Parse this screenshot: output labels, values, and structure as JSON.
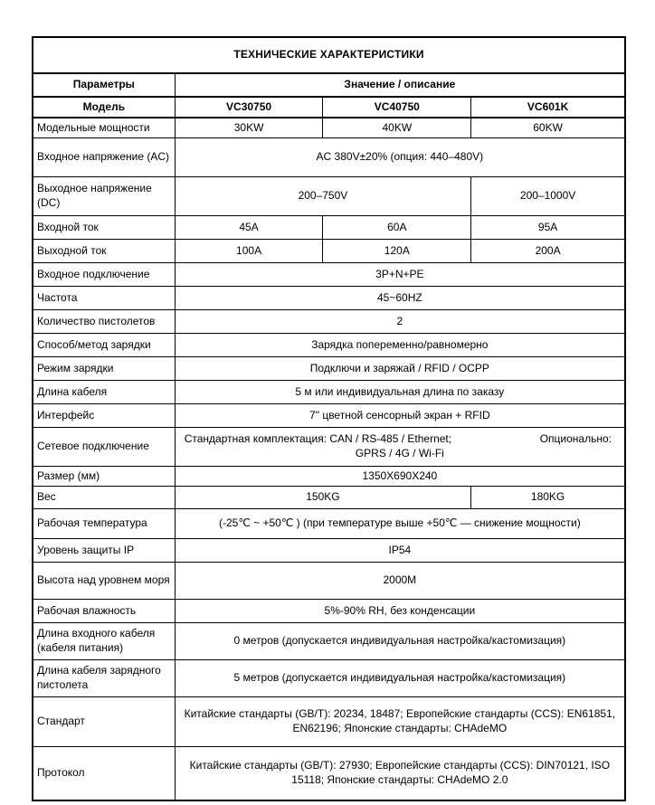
{
  "document": {
    "title": "ТЕХНИЧЕСКИЕ ХАРАКТЕРИСТИКИ",
    "colors": {
      "text": "#000000",
      "border": "#000000",
      "background": "#ffffff"
    }
  },
  "table": {
    "column_count": 4,
    "rows": [
      {
        "cells": [
          {
            "t": "ТЕХНИЧЕСКИЕ ХАРАКТЕРИСТИКИ",
            "span": 4,
            "style": "title"
          }
        ]
      },
      {
        "cells": [
          {
            "t": "Параметры",
            "style": "head"
          },
          {
            "t": "Значение / описание",
            "span": 3,
            "style": "head"
          }
        ]
      },
      {
        "cells": [
          {
            "t": "Модель",
            "style": "head"
          },
          {
            "t": "VC30750",
            "style": "head"
          },
          {
            "t": "VC40750",
            "style": "head"
          },
          {
            "t": "VC601K",
            "style": "head"
          }
        ]
      },
      {
        "cells": [
          {
            "t": "Модельные мощности",
            "style": "label"
          },
          {
            "t": "30KW"
          },
          {
            "t": "40KW"
          },
          {
            "t": "60KW"
          }
        ]
      },
      {
        "cells": [
          {
            "t": "Входное напряжение (AC)",
            "style": "label"
          },
          {
            "t": "AC 380V±20% (опция: 440–480V)",
            "span": 3
          }
        ]
      },
      {
        "cells": [
          {
            "t": "Выходное напряжение (DC)",
            "style": "label"
          },
          {
            "t": "200–750V",
            "span": 2
          },
          {
            "t": "200–1000V"
          }
        ]
      },
      {
        "cells": [
          {
            "t": "Входной ток",
            "style": "label"
          },
          {
            "t": "45A"
          },
          {
            "t": "60A"
          },
          {
            "t": "95A"
          }
        ]
      },
      {
        "cells": [
          {
            "t": "Выходной ток",
            "style": "label"
          },
          {
            "t": "100A"
          },
          {
            "t": "120A"
          },
          {
            "t": "200A"
          }
        ]
      },
      {
        "cells": [
          {
            "t": "Входное подключение",
            "style": "label"
          },
          {
            "t": "3P+N+PE",
            "span": 3
          }
        ]
      },
      {
        "cells": [
          {
            "t": "Частота",
            "style": "label"
          },
          {
            "t": "45~60HZ",
            "span": 3
          }
        ]
      },
      {
        "cells": [
          {
            "t": "Количество пистолетов",
            "style": "label"
          },
          {
            "t": "2",
            "span": 3
          }
        ]
      },
      {
        "cells": [
          {
            "t": "Способ/метод зарядки",
            "style": "label"
          },
          {
            "t": "Зарядка попеременно/равномерно",
            "span": 3
          }
        ]
      },
      {
        "cells": [
          {
            "t": "Режим зарядки",
            "style": "label"
          },
          {
            "t": "Подключи и заряжай / RFID / OCPP",
            "span": 3
          }
        ]
      },
      {
        "cells": [
          {
            "t": "Длина кабеля",
            "style": "label"
          },
          {
            "t": "5 м или индивидуальная длина по заказу",
            "span": 3
          }
        ]
      },
      {
        "cells": [
          {
            "t": "Интерфейс",
            "style": "label"
          },
          {
            "t": "7\" цветной сенсорный экран + RFID",
            "span": 3
          }
        ]
      },
      {
        "cells": [
          {
            "t": "Сетевое подключение",
            "style": "label"
          },
          {
            "span": 3,
            "rich": {
              "left": "Стандартная комплектация: CAN / RS-485 / Ethernet;",
              "right": "Опционально:",
              "line2": "GPRS / 4G / Wi-Fi"
            }
          }
        ]
      },
      {
        "cells": [
          {
            "t": "Размер (мм)",
            "style": "label"
          },
          {
            "t": "1350X690X240",
            "span": 3
          }
        ]
      },
      {
        "cells": [
          {
            "t": "Вес",
            "style": "label"
          },
          {
            "t": "150KG",
            "span": 2
          },
          {
            "t": "180KG"
          }
        ]
      },
      {
        "cells": [
          {
            "t": "Рабочая температура",
            "style": "label"
          },
          {
            "t": "(-25℃ ~ +50℃ ) (при температуре выше +50℃ — снижение мощности)",
            "span": 3
          }
        ]
      },
      {
        "cells": [
          {
            "t": "Уровень защиты IP",
            "style": "label"
          },
          {
            "t": "IP54",
            "span": 3
          }
        ]
      },
      {
        "cells": [
          {
            "t": "Высота над уровнем моря",
            "style": "label"
          },
          {
            "t": "2000M",
            "span": 3
          }
        ]
      },
      {
        "cells": [
          {
            "t": "Рабочая влажность",
            "style": "label"
          },
          {
            "t": "5%-90% RH, без конденсации",
            "span": 3
          }
        ]
      },
      {
        "cells": [
          {
            "t": "Длина входного кабеля (кабеля питания)",
            "style": "label"
          },
          {
            "t": "0 метров (допускается индивидуальная настройка/кастомизация)",
            "span": 3
          }
        ]
      },
      {
        "cells": [
          {
            "t": "Длина кабеля зарядного пистолета",
            "style": "label"
          },
          {
            "t": "5 метров (допускается индивидуальная настройка/кастомизация)",
            "span": 3
          }
        ]
      },
      {
        "cells": [
          {
            "t": "Стандарт",
            "style": "label"
          },
          {
            "t": "Китайские стандарты (GB/T): 20234, 18487; Европейские стандарты (CCS): EN61851, EN62196; Японские стандарты: CHAdeMO",
            "span": 3
          }
        ]
      },
      {
        "cells": [
          {
            "t": "Протокол",
            "style": "label"
          },
          {
            "t": "Китайские стандарты (GB/T): 27930; Европейские стандарты (CCS): DIN70121, ISO 15118; Японские стандарты: CHAdeMO 2.0",
            "span": 3
          }
        ]
      }
    ]
  }
}
